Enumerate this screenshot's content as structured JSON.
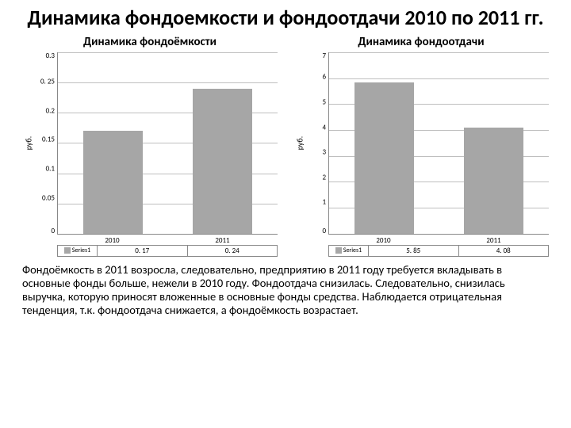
{
  "title": "Динамика фондоемкости и фондоотдачи 2010 по 2011 гг.",
  "left_chart": {
    "type": "bar",
    "title": "Динамика фондоёмкости",
    "ylabel": "руб.",
    "categories": [
      "2010",
      "2011"
    ],
    "values": [
      0.17,
      0.24
    ],
    "value_labels": [
      "0. 17",
      "0. 24"
    ],
    "series_name": "Series1",
    "ylim": [
      0,
      0.3
    ],
    "yticks": [
      "0.3",
      "0. 25",
      "0.2",
      "0.15",
      "0.1",
      "0.05",
      "0"
    ],
    "bar_color": "#a6a6a6",
    "grid_color": "#bfbfbf",
    "background_color": "#ffffff"
  },
  "right_chart": {
    "type": "bar",
    "title": "Динамика фондоотдачи",
    "ylabel": "руб.",
    "categories": [
      "2010",
      "2011"
    ],
    "values": [
      5.85,
      4.08
    ],
    "value_labels": [
      "5. 85",
      "4. 08"
    ],
    "series_name": "Series1",
    "ylim": [
      0,
      7
    ],
    "yticks": [
      "7",
      "6",
      "5",
      "4",
      "3",
      "2",
      "1",
      "0"
    ],
    "bar_color": "#a6a6a6",
    "grid_color": "#bfbfbf",
    "background_color": "#ffffff"
  },
  "caption": "Фондоёмкость в 2011 возросла, следовательно, предприятию в 2011 году требуется вкладывать в основные фонды больше, нежели в 2010 году. Фондоотдача снизилась. Следовательно, снизилась выручка, которую приносят вложенные в основные фонды средства. Наблюдается отрицательная тенденция, т.к. фондоотдача снижается, а фондоёмкость возрастает."
}
